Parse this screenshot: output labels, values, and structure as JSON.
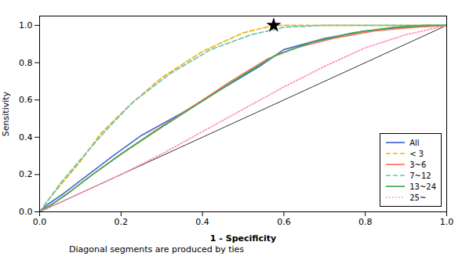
{
  "chart_data": {
    "type": "line",
    "title": "",
    "xlabel": "1 - Specificity",
    "ylabel": "Sensitivity",
    "footnote": "Diagonal segments are produced by ties",
    "xlim": [
      0.0,
      1.0
    ],
    "ylim": [
      0.0,
      1.05
    ],
    "xticks": [
      {
        "value": 0.0,
        "label": "0.0"
      },
      {
        "value": 0.2,
        "label": "0.2"
      },
      {
        "value": 0.4,
        "label": "0.4"
      },
      {
        "value": 0.6,
        "label": "0.6"
      },
      {
        "value": 0.8,
        "label": "0.8"
      },
      {
        "value": 1.0,
        "label": "1.0"
      }
    ],
    "yticks": [
      {
        "value": 0.0,
        "label": "0.0"
      },
      {
        "value": 0.2,
        "label": "0.2"
      },
      {
        "value": 0.4,
        "label": "0.4"
      },
      {
        "value": 0.6,
        "label": "0.6"
      },
      {
        "value": 0.8,
        "label": "0.8"
      },
      {
        "value": 1.0,
        "label": "1.0"
      }
    ],
    "legend": "lower right",
    "series": [
      {
        "x": [
          0.0,
          1.0
        ],
        "values": [
          0.0,
          1.0
        ],
        "color": "#000000",
        "line_style": "solid"
      },
      {
        "name": "All",
        "line_style": "solid",
        "x": [
          0.0,
          0.02,
          0.06,
          0.12,
          0.18,
          0.25,
          0.35,
          0.44,
          0.54,
          0.6,
          0.7,
          0.8,
          0.9,
          1.0
        ],
        "values": [
          0.0,
          0.04,
          0.1,
          0.2,
          0.3,
          0.41,
          0.53,
          0.65,
          0.78,
          0.87,
          0.93,
          0.97,
          0.99,
          1.0
        ]
      },
      {
        "name": "< 3",
        "line_style": "dashed",
        "x": [
          0.0,
          0.02,
          0.05,
          0.1,
          0.15,
          0.22,
          0.3,
          0.4,
          0.5,
          0.575,
          0.7,
          0.85,
          1.0
        ],
        "values": [
          0.0,
          0.06,
          0.14,
          0.27,
          0.42,
          0.57,
          0.72,
          0.86,
          0.96,
          1.0,
          1.0,
          1.0,
          1.0
        ]
      },
      {
        "name": "3~6",
        "line_style": "solid",
        "x": [
          0.0,
          0.03,
          0.07,
          0.13,
          0.2,
          0.28,
          0.38,
          0.47,
          0.56,
          0.63,
          0.72,
          0.82,
          0.92,
          1.0
        ],
        "values": [
          0.0,
          0.04,
          0.1,
          0.2,
          0.31,
          0.43,
          0.57,
          0.7,
          0.82,
          0.88,
          0.93,
          0.97,
          0.99,
          1.0
        ]
      },
      {
        "name": "7~12",
        "line_style": "dashed",
        "x": [
          0.0,
          0.02,
          0.05,
          0.1,
          0.16,
          0.23,
          0.32,
          0.42,
          0.52,
          0.6,
          0.7,
          0.8,
          0.9,
          1.0
        ],
        "values": [
          0.0,
          0.06,
          0.15,
          0.28,
          0.43,
          0.59,
          0.74,
          0.87,
          0.95,
          0.99,
          1.0,
          1.0,
          1.0,
          1.0
        ]
      },
      {
        "name": "13~24",
        "line_style": "solid",
        "x": [
          0.0,
          0.03,
          0.07,
          0.13,
          0.2,
          0.29,
          0.39,
          0.49,
          0.58,
          0.67,
          0.77,
          0.87,
          0.95,
          1.0
        ],
        "values": [
          0.0,
          0.04,
          0.1,
          0.2,
          0.31,
          0.44,
          0.58,
          0.72,
          0.84,
          0.91,
          0.96,
          0.99,
          1.0,
          1.0
        ]
      },
      {
        "name": "25~",
        "line_style": "dotted",
        "x": [
          0.0,
          0.04,
          0.1,
          0.2,
          0.3,
          0.4,
          0.5,
          0.6,
          0.7,
          0.8,
          0.9,
          1.0
        ],
        "values": [
          0.0,
          0.04,
          0.1,
          0.2,
          0.31,
          0.43,
          0.55,
          0.67,
          0.78,
          0.88,
          0.95,
          1.0
        ]
      }
    ],
    "markers": [
      {
        "x": 0.575,
        "y": 1.0,
        "marker": "star",
        "color": "#000000"
      }
    ]
  }
}
